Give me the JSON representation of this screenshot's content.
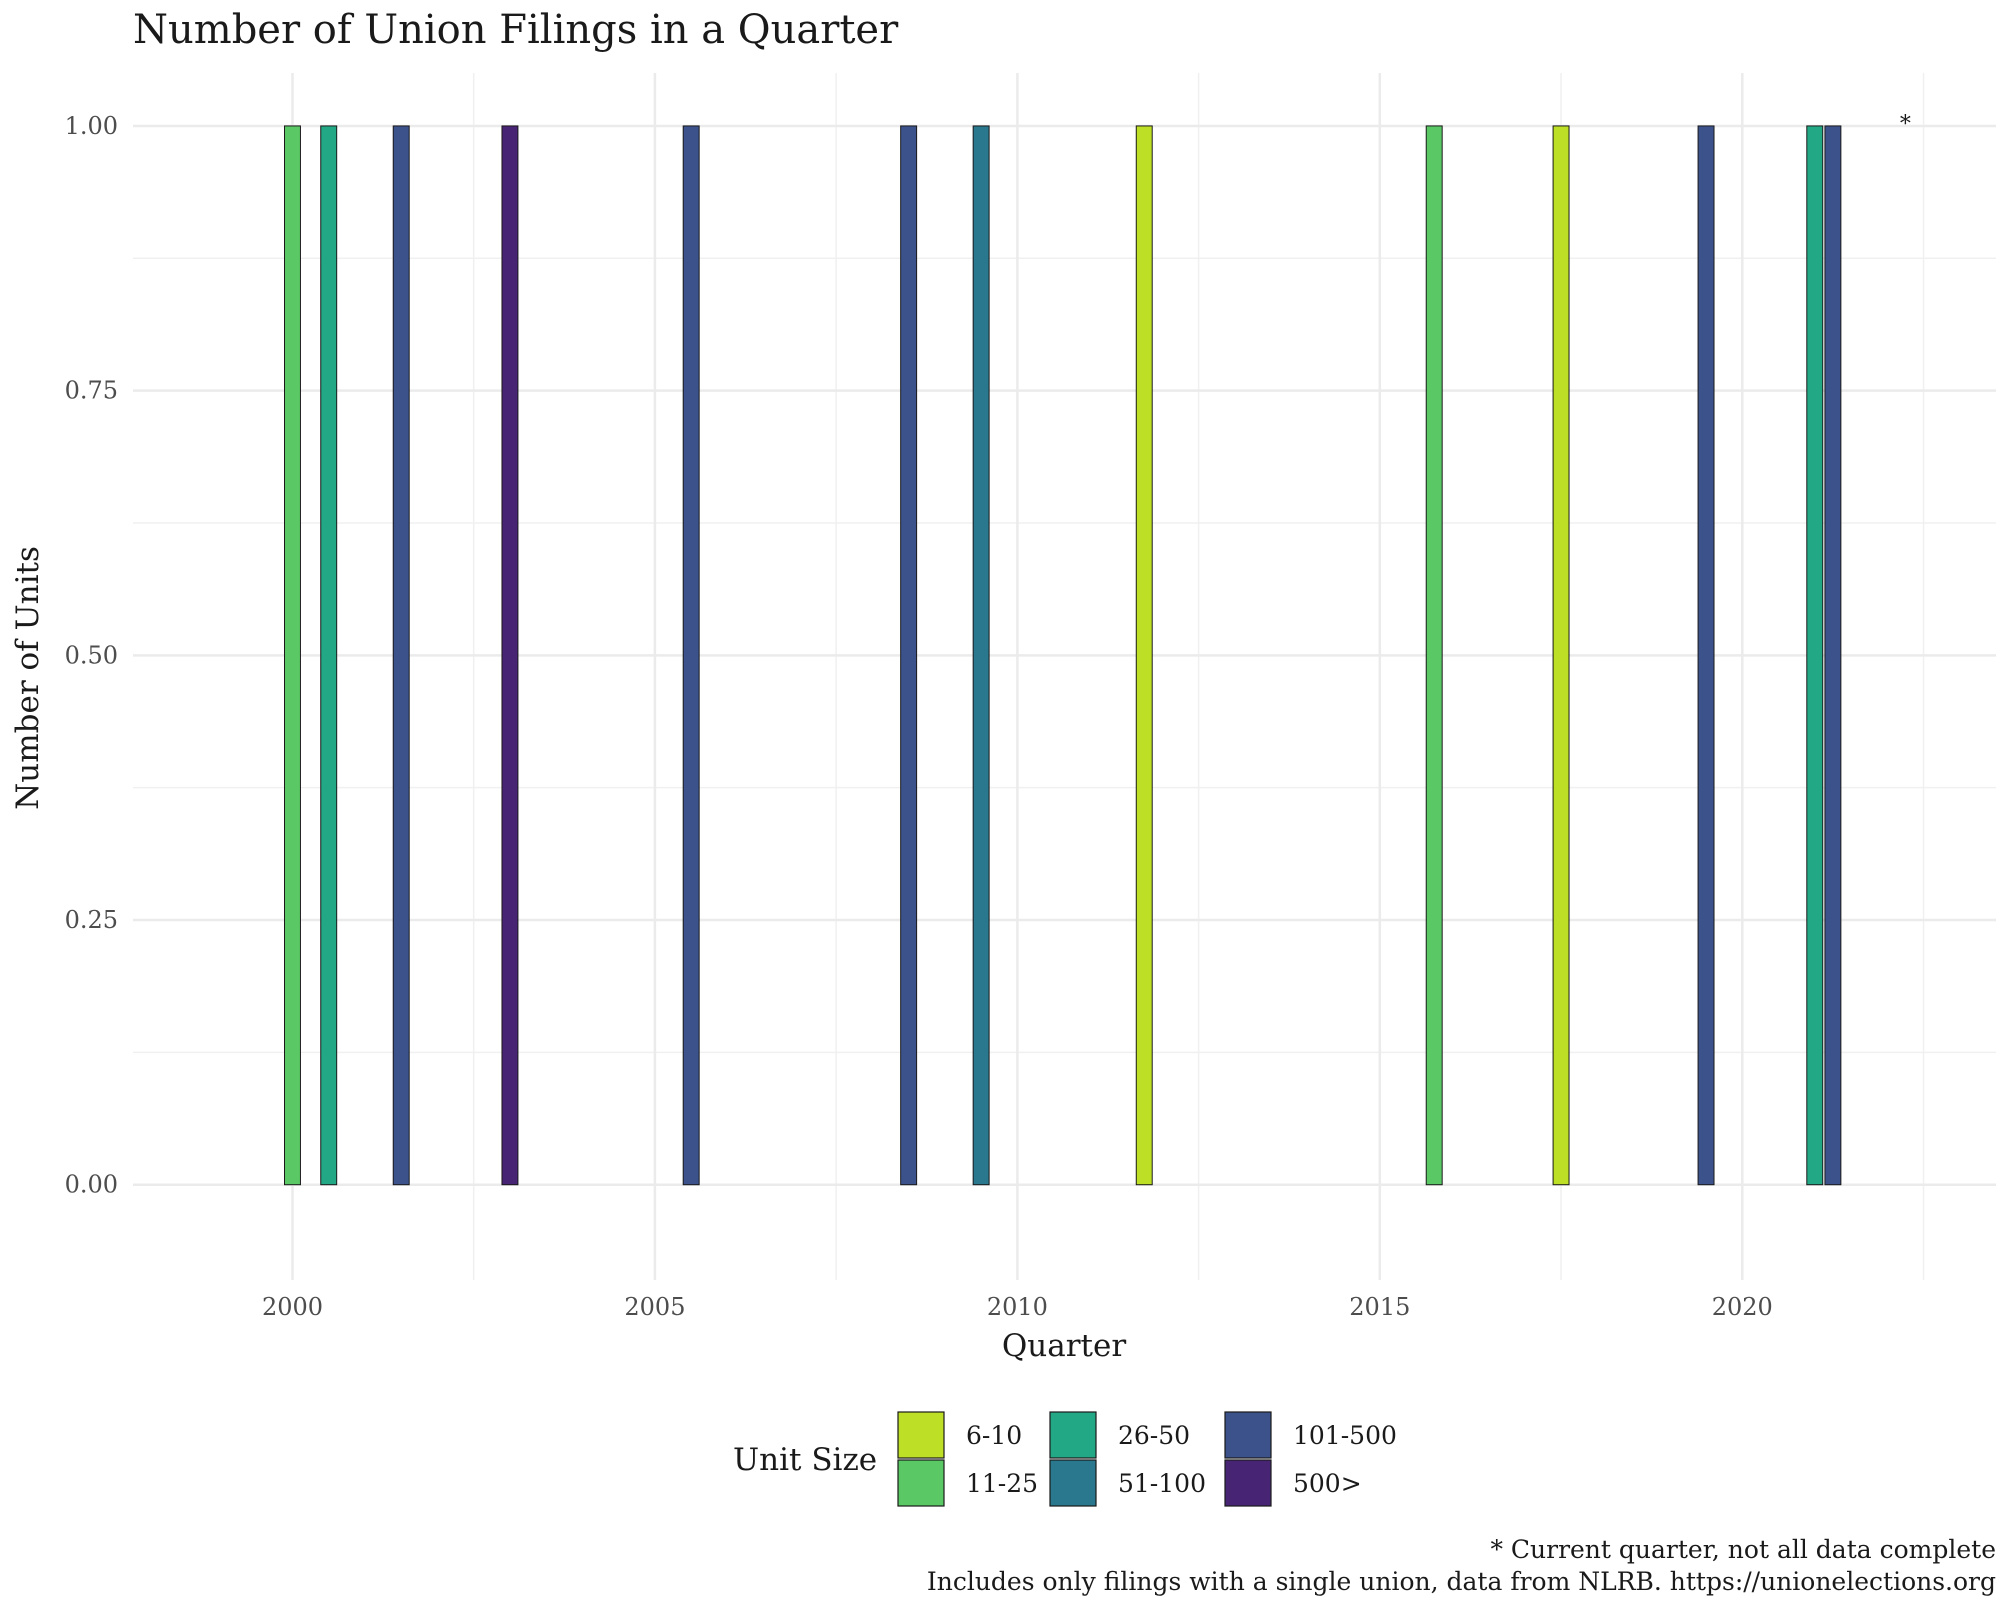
{
  "chart_data": {
    "type": "bar",
    "title": "Number of Union Filings in a Quarter",
    "xlabel": "Quarter",
    "ylabel": "Number of Units",
    "xlim": [
      1997.8,
      2023.5
    ],
    "ylim": [
      -0.09,
      1.05
    ],
    "x_ticks": [
      2000,
      2005,
      2010,
      2015,
      2020
    ],
    "y_ticks": [
      0,
      0.25,
      0.5,
      0.75,
      1.0
    ],
    "y_tick_labels": [
      "0.00",
      "0.25",
      "0.50",
      "0.75",
      "1.00"
    ],
    "grid": true,
    "legend": {
      "title": "Unit Size",
      "position": "bottom",
      "entries": [
        {
          "label": "6-10",
          "color": "#bddf26"
        },
        {
          "label": "11-25",
          "color": "#5ac864"
        },
        {
          "label": "26-50",
          "color": "#22a884"
        },
        {
          "label": "51-100",
          "color": "#2a788e"
        },
        {
          "label": "101-500",
          "color": "#3b528b"
        },
        {
          "label": "500>",
          "color": "#482475"
        }
      ]
    },
    "bars": [
      {
        "x": 2000.0,
        "value": 1,
        "unit_size": "11-25"
      },
      {
        "x": 2000.5,
        "value": 1,
        "unit_size": "26-50"
      },
      {
        "x": 2001.5,
        "value": 1,
        "unit_size": "101-500"
      },
      {
        "x": 2003.0,
        "value": 1,
        "unit_size": "500>"
      },
      {
        "x": 2005.5,
        "value": 1,
        "unit_size": "101-500"
      },
      {
        "x": 2008.5,
        "value": 1,
        "unit_size": "101-500"
      },
      {
        "x": 2009.5,
        "value": 1,
        "unit_size": "51-100"
      },
      {
        "x": 2011.75,
        "value": 1,
        "unit_size": "6-10"
      },
      {
        "x": 2015.75,
        "value": 1,
        "unit_size": "11-25"
      },
      {
        "x": 2017.5,
        "value": 1,
        "unit_size": "6-10"
      },
      {
        "x": 2019.5,
        "value": 1,
        "unit_size": "101-500"
      },
      {
        "x": 2021.0,
        "value": 1,
        "unit_size": "26-50"
      },
      {
        "x": 2021.25,
        "value": 1,
        "unit_size": "101-500"
      }
    ],
    "annotation": {
      "text": "*",
      "x": 2022.25,
      "y": 1.0
    },
    "captions": [
      "* Current quarter, not all data complete",
      "Includes only filings with a single union, data from NLRB. https://unionelections.org"
    ]
  }
}
